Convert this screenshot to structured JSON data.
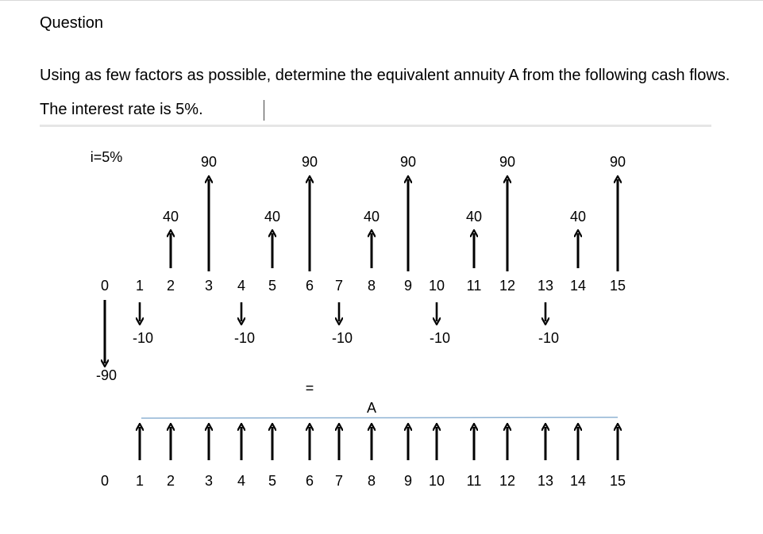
{
  "heading": "Question",
  "question_text": "Using as few factors as possible, determine the equivalent annuity A from the following cash flows. The interest rate is 5%.",
  "diagram": {
    "rate_label": "i=5%",
    "equals_sign": "=",
    "annuity_label": "A",
    "periods": [
      "0",
      "1",
      "2",
      "3",
      "4",
      "5",
      "6",
      "7",
      "8",
      "9",
      "10",
      "11",
      "12",
      "13",
      "14",
      "15"
    ],
    "inflows_90": [
      {
        "period": 3,
        "value": "90"
      },
      {
        "period": 6,
        "value": "90"
      },
      {
        "period": 9,
        "value": "90"
      },
      {
        "period": 12,
        "value": "90"
      },
      {
        "period": 15,
        "value": "90"
      }
    ],
    "inflows_40": [
      {
        "period": 2,
        "value": "40"
      },
      {
        "period": 5,
        "value": "40"
      },
      {
        "period": 8,
        "value": "40"
      },
      {
        "period": 11,
        "value": "40"
      },
      {
        "period": 14,
        "value": "40"
      }
    ],
    "outflows_10": [
      {
        "period": 1,
        "value": "-10"
      },
      {
        "period": 4,
        "value": "-10"
      },
      {
        "period": 7,
        "value": "-10"
      },
      {
        "period": 10,
        "value": "-10"
      },
      {
        "period": 13,
        "value": "-10"
      }
    ],
    "initial_outflow": {
      "period": 0,
      "value": "-90"
    },
    "annuity_periods": [
      1,
      2,
      3,
      4,
      5,
      6,
      7,
      8,
      9,
      10,
      11,
      12,
      13,
      14,
      15
    ]
  }
}
